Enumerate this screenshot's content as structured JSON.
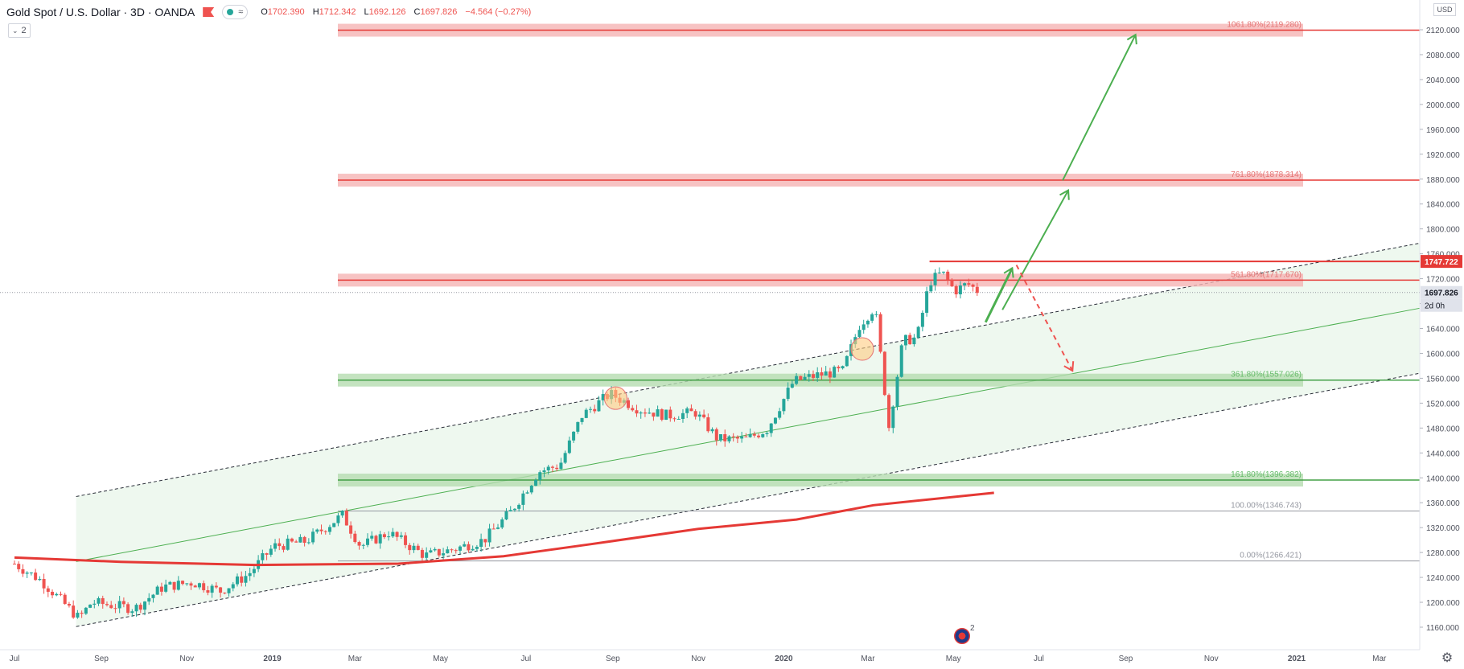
{
  "header": {
    "title": "Gold Spot / U.S. Dollar · 3D · OANDA",
    "pill_text": "≈",
    "ohlc": {
      "open_label": "O",
      "open": "1702.390",
      "high_label": "H",
      "high": "1712.342",
      "low_label": "L",
      "low": "1692.126",
      "close_label": "C",
      "close": "1697.826",
      "change": "−4.564 (−0.27%)"
    },
    "indicator_count": "2"
  },
  "price_axis": {
    "currency": "USD",
    "ticks": [
      "2120.000",
      "2080.000",
      "2040.000",
      "2000.000",
      "1960.000",
      "1920.000",
      "1880.000",
      "1840.000",
      "1800.000",
      "1760.000",
      "1720.000",
      "1680.000",
      "1640.000",
      "1600.000",
      "1560.000",
      "1520.000",
      "1480.000",
      "1440.000",
      "1400.000",
      "1360.000",
      "1320.000",
      "1280.000",
      "1240.000",
      "1200.000",
      "1160.000"
    ],
    "last_price_label": "1697.826",
    "countdown_label": "2d 0h",
    "level_label": "1747.722"
  },
  "event_marker": {
    "count": "2"
  },
  "colors": {
    "up": "#26a69a",
    "down": "#ef5350",
    "ma": "#e53935",
    "red_zone": "#f5b4b4",
    "green_zone": "#b5dcb0",
    "channel_fill": "#e8f5e9",
    "arrow_green": "#4caf50",
    "arrow_red": "#ef5350"
  },
  "chart_data": {
    "type": "candlestick",
    "symbol": "Gold Spot / U.S. Dollar",
    "interval": "3D",
    "broker": "OANDA",
    "x_labels": [
      "Jul",
      "Sep",
      "Nov",
      "2019",
      "Mar",
      "May",
      "Jul",
      "Sep",
      "Nov",
      "2020",
      "Mar",
      "May",
      "Jul",
      "Sep",
      "Nov",
      "2021",
      "Mar"
    ],
    "y_range": [
      1140,
      2130
    ],
    "fib_levels": [
      {
        "label": "1061.80%(2119.280)",
        "value": 2119.28,
        "zone": "red"
      },
      {
        "label": "761.80%(1878.314)",
        "value": 1878.314,
        "zone": "red"
      },
      {
        "label": "561.80%(1717.670)",
        "value": 1717.67,
        "zone": "red"
      },
      {
        "label": "361.80%(1557.026)",
        "value": 1557.026,
        "zone": "green"
      },
      {
        "label": "161.80%(1396.382)",
        "value": 1396.382,
        "zone": "green"
      },
      {
        "label": "100.00%(1346.743)",
        "value": 1346.743,
        "zone": "none"
      },
      {
        "label": "0.00%(1266.421)",
        "value": 1266.421,
        "zone": "none"
      }
    ],
    "resistance_line": 1747.722,
    "last_price": 1697.826,
    "path": [
      [
        "2018-07-01",
        1262
      ],
      [
        "2018-07-20",
        1235
      ],
      [
        "2018-08-16",
        1174
      ],
      [
        "2018-08-25",
        1200
      ],
      [
        "2018-09-25",
        1190
      ],
      [
        "2018-10-15",
        1225
      ],
      [
        "2018-11-05",
        1232
      ],
      [
        "2018-11-25",
        1218
      ],
      [
        "2018-12-15",
        1245
      ],
      [
        "2019-01-02",
        1290
      ],
      [
        "2019-01-25",
        1298
      ],
      [
        "2019-02-20",
        1340
      ],
      [
        "2019-03-05",
        1290
      ],
      [
        "2019-03-25",
        1312
      ],
      [
        "2019-04-20",
        1275
      ],
      [
        "2019-05-10",
        1285
      ],
      [
        "2019-06-01",
        1300
      ],
      [
        "2019-06-20",
        1345
      ],
      [
        "2019-07-10",
        1410
      ],
      [
        "2019-07-25",
        1420
      ],
      [
        "2019-08-10",
        1500
      ],
      [
        "2019-08-30",
        1535
      ],
      [
        "2019-09-20",
        1510
      ],
      [
        "2019-10-10",
        1500
      ],
      [
        "2019-10-30",
        1505
      ],
      [
        "2019-11-15",
        1462
      ],
      [
        "2019-12-05",
        1462
      ],
      [
        "2019-12-20",
        1478
      ],
      [
        "2020-01-08",
        1555
      ],
      [
        "2020-01-25",
        1565
      ],
      [
        "2020-02-12",
        1572
      ],
      [
        "2020-02-24",
        1645
      ],
      [
        "2020-03-06",
        1675
      ],
      [
        "2020-03-16",
        1482
      ],
      [
        "2020-03-26",
        1620
      ],
      [
        "2020-04-05",
        1625
      ],
      [
        "2020-04-14",
        1715
      ],
      [
        "2020-04-23",
        1730
      ],
      [
        "2020-05-02",
        1700
      ],
      [
        "2020-05-11",
        1712
      ],
      [
        "2020-05-20",
        1697.826
      ]
    ],
    "ma_path": [
      [
        "2018-07-01",
        1272
      ],
      [
        "2018-09-15",
        1265
      ],
      [
        "2018-12-20",
        1260
      ],
      [
        "2019-04-01",
        1262
      ],
      [
        "2019-06-15",
        1274
      ],
      [
        "2019-08-15",
        1293
      ],
      [
        "2019-11-01",
        1318
      ],
      [
        "2020-01-10",
        1333
      ],
      [
        "2020-03-05",
        1356
      ],
      [
        "2020-05-30",
        1376
      ]
    ],
    "candle_step_days": 3,
    "ma_color": "#e53935"
  }
}
